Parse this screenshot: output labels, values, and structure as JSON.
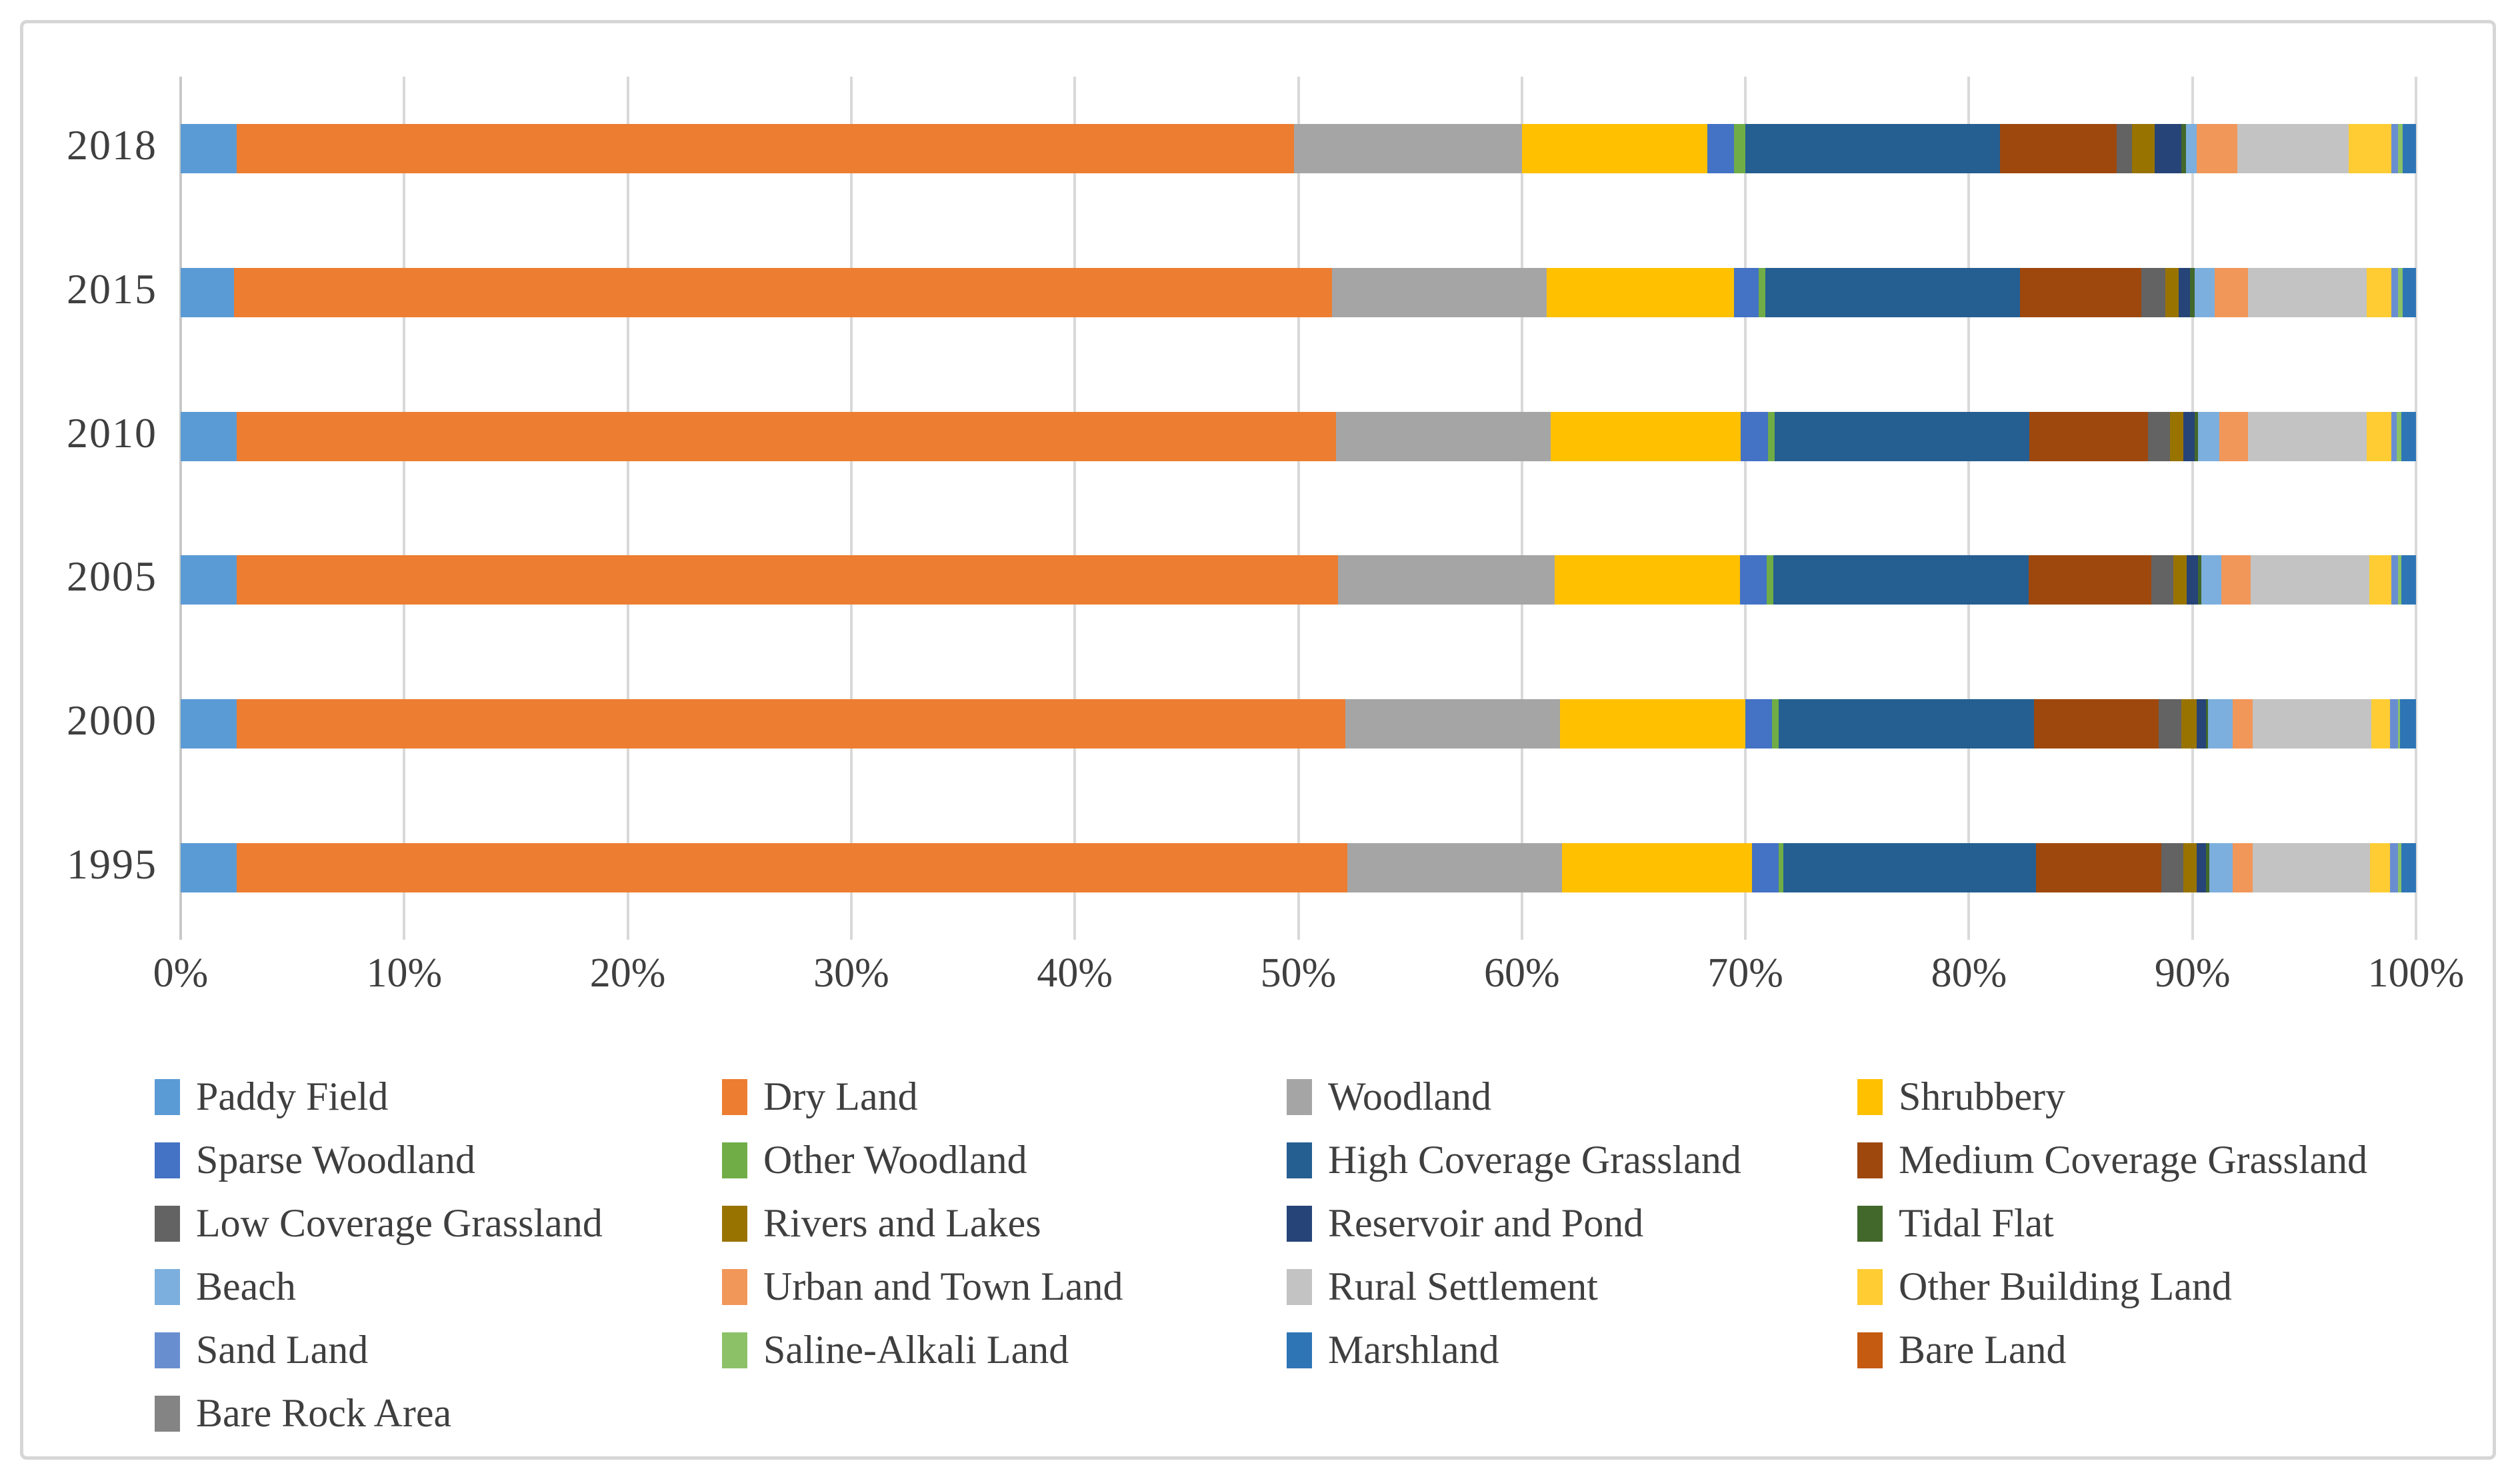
{
  "figure": {
    "background": "#ffffff",
    "border_color": "#d6d6d6"
  },
  "axis": {
    "x_ticks": [
      "0%",
      "10%",
      "20%",
      "30%",
      "40%",
      "50%",
      "60%",
      "70%",
      "80%",
      "90%",
      "100%"
    ],
    "grid_color": "#d9d9d9",
    "label_color": "#3f3f3f"
  },
  "chart_data": {
    "type": "bar",
    "orientation": "horizontal",
    "stacked": true,
    "unit": "percent",
    "xlim": [
      0,
      100
    ],
    "grid": true,
    "legend_position": "bottom",
    "title": "",
    "xlabel": "",
    "ylabel": "",
    "categories": [
      "2018",
      "2015",
      "2010",
      "2005",
      "2000",
      "1995"
    ],
    "series": [
      {
        "name": "Paddy Field",
        "color": "#5B9BD5",
        "values": [
          2.5,
          2.4,
          2.5,
          2.5,
          2.5,
          2.5
        ]
      },
      {
        "name": "Dry Land",
        "color": "#ED7D31",
        "values": [
          47.3,
          49.1,
          49.2,
          49.3,
          49.6,
          49.7
        ]
      },
      {
        "name": "Woodland",
        "color": "#A5A5A5",
        "values": [
          10.2,
          9.6,
          9.6,
          9.7,
          9.6,
          9.6
        ]
      },
      {
        "name": "Shrubbery",
        "color": "#FFC000",
        "values": [
          8.3,
          8.4,
          8.5,
          8.3,
          8.3,
          8.5
        ]
      },
      {
        "name": "Sparse Woodland",
        "color": "#4472C4",
        "values": [
          1.2,
          1.1,
          1.2,
          1.2,
          1.2,
          1.2
        ]
      },
      {
        "name": "Other Woodland",
        "color": "#70AD47",
        "values": [
          0.5,
          0.3,
          0.3,
          0.3,
          0.3,
          0.2
        ]
      },
      {
        "name": "High Coverage Grassland",
        "color": "#255E91",
        "values": [
          11.4,
          11.4,
          11.4,
          11.4,
          11.4,
          11.3
        ]
      },
      {
        "name": "Medium Coverage Grassland",
        "color": "#9E480E",
        "values": [
          5.2,
          5.4,
          5.3,
          5.5,
          5.6,
          5.6
        ]
      },
      {
        "name": "Low Coverage Grassland",
        "color": "#636363",
        "values": [
          0.7,
          1.1,
          1.0,
          1.0,
          1.0,
          1.0
        ]
      },
      {
        "name": "Rivers and Lakes",
        "color": "#997300",
        "values": [
          1.0,
          0.6,
          0.6,
          0.6,
          0.7,
          0.6
        ]
      },
      {
        "name": "Reservoir and Pond",
        "color": "#264478",
        "values": [
          1.2,
          0.5,
          0.5,
          0.5,
          0.4,
          0.4
        ]
      },
      {
        "name": "Tidal Flat",
        "color": "#43682B",
        "values": [
          0.2,
          0.2,
          0.15,
          0.15,
          0.1,
          0.15
        ]
      },
      {
        "name": "Beach",
        "color": "#7CAFDD",
        "values": [
          0.5,
          0.9,
          0.95,
          0.9,
          1.1,
          1.05
        ]
      },
      {
        "name": "Urban and Town Land",
        "color": "#F1975A",
        "values": [
          1.8,
          1.5,
          1.3,
          1.3,
          0.9,
          0.9
        ]
      },
      {
        "name": "Rural Settlement",
        "color": "#C3C3C3",
        "values": [
          5.0,
          5.3,
          5.3,
          5.3,
          5.3,
          5.25
        ]
      },
      {
        "name": "Other Building Land",
        "color": "#FFCD33",
        "values": [
          1.9,
          1.1,
          1.1,
          1.0,
          0.85,
          0.9
        ]
      },
      {
        "name": "Sand Land",
        "color": "#698ED0",
        "values": [
          0.3,
          0.3,
          0.25,
          0.3,
          0.35,
          0.35
        ]
      },
      {
        "name": "Saline-Alkali Land",
        "color": "#8CC168",
        "values": [
          0.2,
          0.2,
          0.2,
          0.15,
          0.1,
          0.15
        ]
      },
      {
        "name": "Marshland",
        "color": "#2E75B6",
        "values": [
          0.6,
          0.6,
          0.65,
          0.65,
          0.7,
          0.65
        ]
      },
      {
        "name": "Bare Land",
        "color": "#C55A11",
        "values": [
          0,
          0,
          0,
          0,
          0,
          0
        ]
      },
      {
        "name": "Bare Rock Area",
        "color": "#848484",
        "values": [
          0,
          0,
          0,
          0,
          0,
          0
        ]
      }
    ]
  },
  "legend": {
    "columns": 4
  }
}
